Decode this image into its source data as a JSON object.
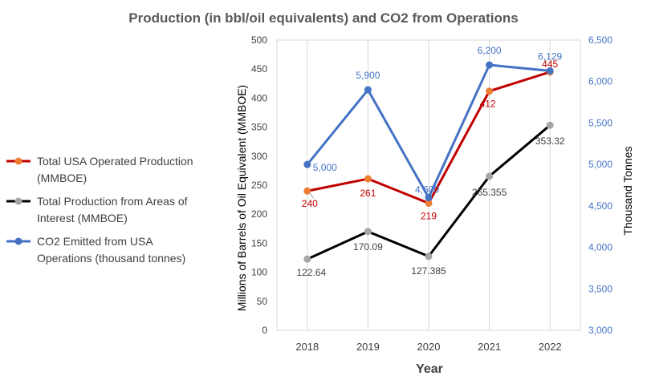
{
  "chart_data": {
    "type": "line",
    "title": "Production (in bbl/oil equivalents) and CO2 from Operations",
    "xlabel": "Year",
    "ylabel": "Millions of Barrels of Oil Equivalent (MMBOE)",
    "y2label": "Thousand Tonnes",
    "categories": [
      "2018",
      "2019",
      "2020",
      "2021",
      "2022"
    ],
    "ylim": [
      0,
      500
    ],
    "y2lim": [
      3000,
      6500
    ],
    "yticks": [
      "0",
      "50",
      "100",
      "150",
      "200",
      "250",
      "300",
      "350",
      "400",
      "450",
      "500"
    ],
    "y2ticks": [
      "3,000",
      "3,500",
      "4,000",
      "4,500",
      "5,000",
      "5,500",
      "6,000",
      "6,500"
    ],
    "legend_position": "left",
    "series": [
      {
        "name": "Total USA Operated Production (MMBOE)",
        "legend_lines": [
          "Total USA Operated Production",
          "(MMBOE)"
        ],
        "axis": "left",
        "color": "#c00000",
        "marker": "#ed7d31",
        "values": [
          240,
          261,
          219,
          412,
          445
        ],
        "labels": [
          "240",
          "261",
          "219",
          "412",
          "445"
        ]
      },
      {
        "name": "Total Production from Areas of Interest (MMBOE)",
        "legend_lines": [
          "Total Production from Areas of",
          "Interest (MMBOE)"
        ],
        "axis": "left",
        "color": "#000000",
        "marker": "#a5a5a5",
        "values": [
          122.64,
          170.09,
          127.385,
          265.355,
          353.32
        ],
        "labels": [
          "122.64",
          "170.09",
          "127.385",
          "265.355",
          "353.32"
        ]
      },
      {
        "name": "CO2 Emitted from USA Operations (thousand tonnes)",
        "legend_lines": [
          "CO2 Emitted from USA",
          "Operations (thousand tonnes)"
        ],
        "axis": "right",
        "color": "#4472c4",
        "marker": "#4472c4",
        "values": [
          5000,
          5900,
          4600,
          6200,
          6129
        ],
        "labels": [
          "5,000",
          "5,900",
          "4,600",
          "6,200",
          "6,129"
        ]
      }
    ]
  }
}
